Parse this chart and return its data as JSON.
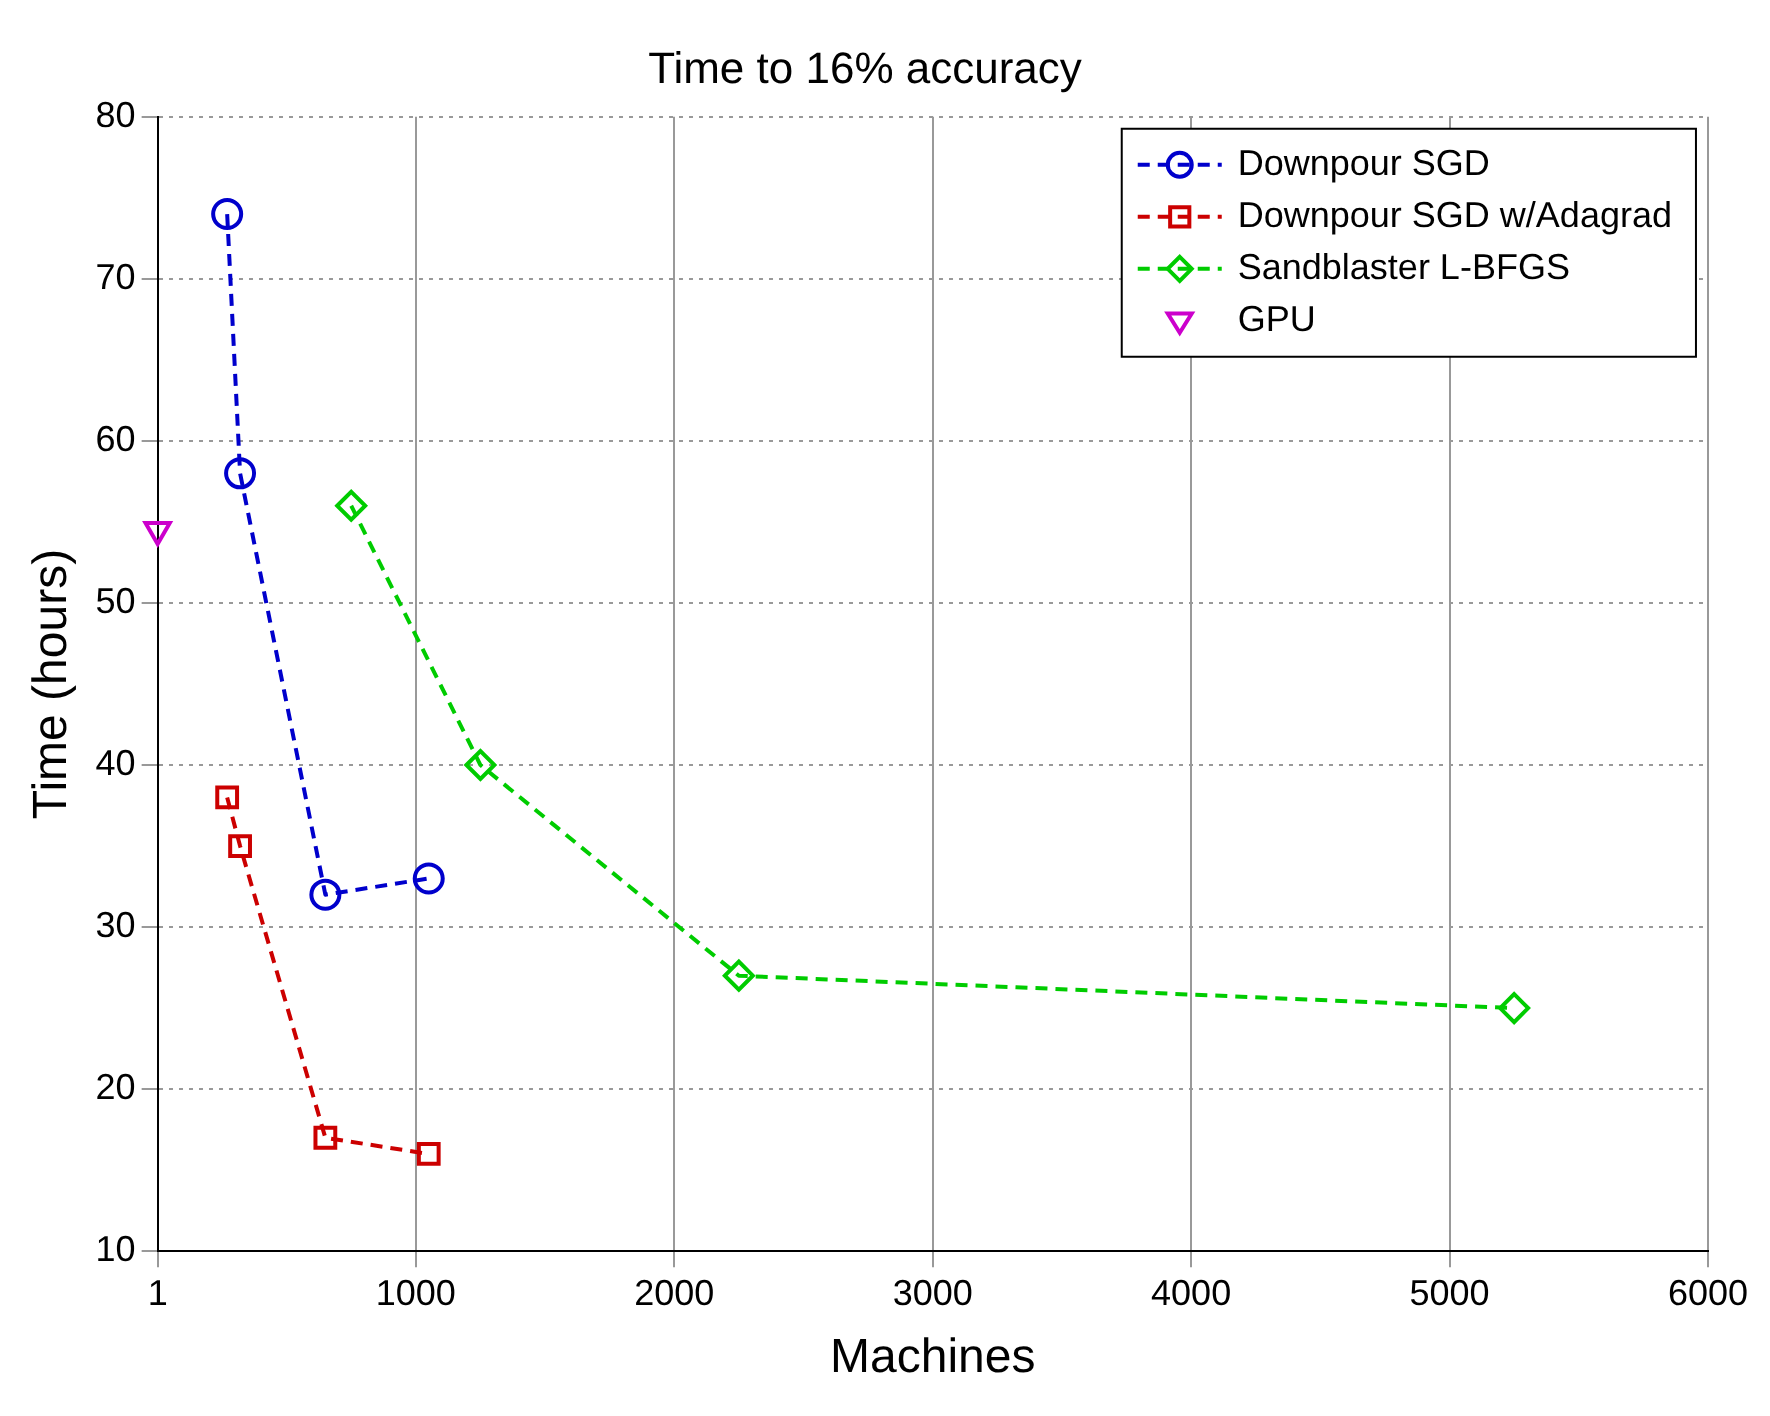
{
  "chart_data": {
    "type": "line",
    "title": "Time to 16% accuracy",
    "xlabel": "Machines",
    "ylabel": "Time (hours)",
    "xlim": [
      1,
      6000
    ],
    "xticks": [
      1,
      1000,
      2000,
      3000,
      4000,
      5000,
      6000
    ],
    "ylim": [
      10,
      80
    ],
    "yticks": [
      10,
      20,
      30,
      40,
      50,
      60,
      70,
      80
    ],
    "grid": true,
    "legend": "top right",
    "line_style": "dashed",
    "series": [
      {
        "name": "Downpour SGD",
        "color": "#0000cc",
        "marker": "circle",
        "x": [
          270,
          320,
          650,
          1050
        ],
        "values": [
          74,
          58,
          32,
          33
        ]
      },
      {
        "name": "Downpour SGD w/Adagrad",
        "color": "#cc0000",
        "marker": "square",
        "x": [
          270,
          320,
          650,
          1050
        ],
        "values": [
          38,
          35,
          17,
          16
        ]
      },
      {
        "name": "Sandblaster L-BFGS",
        "color": "#00cc00",
        "marker": "diamond",
        "x": [
          750,
          1250,
          2250,
          5250
        ],
        "values": [
          56,
          40,
          27,
          25
        ]
      },
      {
        "name": "GPU",
        "color": "#cc00cc",
        "marker": "triangle",
        "type": "scatter",
        "x": [
          1
        ],
        "values": [
          54.5
        ]
      }
    ]
  }
}
